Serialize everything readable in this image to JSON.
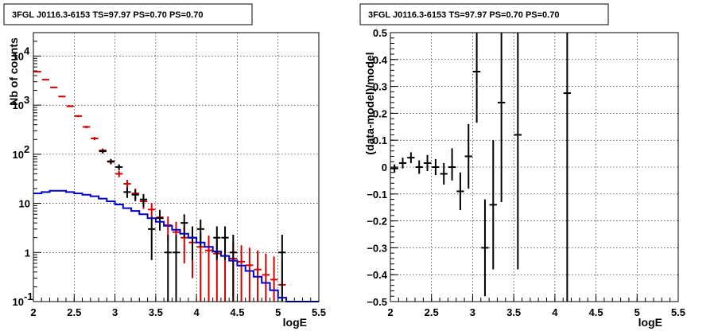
{
  "chart_data": [
    {
      "type": "histogram",
      "title": "3FGL J0116.3-6153 TS=97.97 PS=0.70 PS=0.70",
      "xlabel": "logE",
      "ylabel": "Nb of counts",
      "xlim": [
        2,
        5.5
      ],
      "ylim": [
        0.1,
        30000
      ],
      "yscale": "log",
      "grid": true,
      "x_ticks": [
        "2",
        "2.5",
        "3",
        "3.5",
        "4",
        "4.5",
        "5",
        "5.5"
      ],
      "y_ticks": [
        {
          "value": 0.1,
          "base": "10",
          "exp": "-1"
        },
        {
          "value": 1,
          "base": "1",
          "exp": ""
        },
        {
          "value": 10,
          "base": "10",
          "exp": ""
        },
        {
          "value": 100,
          "base": "10",
          "exp": "2"
        },
        {
          "value": 1000,
          "base": "10",
          "exp": "3"
        },
        {
          "value": 10000,
          "base": "10",
          "exp": "4"
        }
      ],
      "bin_width": 0.1,
      "series": [
        {
          "color": "#d40000",
          "style": "errorbars",
          "x": [
            2.05,
            2.15,
            2.25,
            2.35,
            2.45,
            2.55,
            2.65,
            2.75,
            2.85,
            2.95,
            3.05,
            3.15,
            3.25,
            3.35,
            3.45,
            3.55,
            3.65,
            3.75,
            3.85,
            3.95,
            4.05,
            4.15,
            4.25,
            4.35,
            4.45,
            4.55,
            4.65,
            4.75,
            4.85,
            4.95,
            5.05
          ],
          "y": [
            4800,
            3300,
            2300,
            1500,
            950,
            600,
            360,
            210,
            120,
            70,
            40,
            25,
            16,
            11,
            7.5,
            5.2,
            3.6,
            2.6,
            2.0,
            1.6,
            1.3,
            1.1,
            0.95,
            0.85,
            0.75,
            0.65,
            0.55,
            0.45,
            0.35,
            0.28,
            0.22
          ],
          "err_low": [
            120,
            90,
            70,
            50,
            40,
            30,
            22,
            16,
            11,
            8,
            6,
            5,
            4,
            3.3,
            2.7,
            2.2,
            1.8,
            1.6,
            1.4,
            1.3,
            1.2,
            1.09,
            0.94,
            0.84,
            0.74,
            0.64,
            0.54,
            0.44,
            0.34,
            0.27,
            0.21
          ],
          "err_high": [
            120,
            90,
            70,
            50,
            40,
            30,
            22,
            16,
            11,
            8,
            6,
            5,
            4,
            3.3,
            2.7,
            2.2,
            1.8,
            1.6,
            1.4,
            1.3,
            1.2,
            1.1,
            1.0,
            0.9,
            0.8,
            0.75,
            0.7,
            0.65,
            0.6,
            0.55,
            0.5
          ]
        },
        {
          "color": "#000000",
          "style": "errorbars",
          "x": [
            2.85,
            2.95,
            3.05,
            3.15,
            3.25,
            3.35,
            3.45,
            3.55,
            3.65,
            3.75,
            3.85,
            3.95,
            4.05,
            4.25,
            4.35,
            4.45,
            5.05
          ],
          "y": [
            115,
            72,
            55,
            17,
            15,
            12,
            3,
            5,
            1,
            1,
            4,
            2,
            3,
            2,
            2,
            1,
            1
          ],
          "err_low": [
            11,
            8.5,
            7.4,
            4.1,
            3.9,
            3.5,
            2.3,
            2.2,
            0.9,
            0.9,
            2,
            1.3,
            1.7,
            1.3,
            1.3,
            0.9,
            0.9
          ],
          "err_high": [
            11,
            8.5,
            7.4,
            4.1,
            3.9,
            3.5,
            2.3,
            2.2,
            1.3,
            1.3,
            2,
            1.4,
            1.7,
            1.4,
            1.4,
            1.3,
            1.3
          ]
        },
        {
          "color": "#0000cc",
          "style": "step",
          "edges": [
            2.0,
            2.1,
            2.2,
            2.3,
            2.4,
            2.5,
            2.6,
            2.7,
            2.8,
            2.9,
            3.0,
            3.1,
            3.2,
            3.3,
            3.4,
            3.5,
            3.6,
            3.7,
            3.8,
            3.9,
            4.0,
            4.1,
            4.2,
            4.3,
            4.4,
            4.5,
            4.6,
            4.7,
            4.8,
            4.9,
            5.0,
            5.1,
            5.5
          ],
          "values": [
            16,
            17,
            18,
            18,
            17,
            16,
            15,
            14,
            12.5,
            11,
            9.5,
            8,
            7,
            6,
            5,
            4.2,
            3.5,
            2.9,
            2.4,
            2.0,
            1.6,
            1.3,
            1.05,
            0.85,
            0.68,
            0.54,
            0.42,
            0.32,
            0.24,
            0.17,
            0.12,
            0.1
          ]
        }
      ]
    },
    {
      "type": "scatter",
      "title": "3FGL J0116.3-6153 TS=97.97 PS=0.70 PS=0.70",
      "xlabel": "logE",
      "ylabel": "(data-model)/model",
      "xlim": [
        2,
        5.5
      ],
      "ylim": [
        -0.5,
        0.5
      ],
      "grid": true,
      "x_ticks": [
        "2",
        "2.5",
        "3",
        "3.5",
        "4",
        "4.5",
        "5",
        "5.5"
      ],
      "y_ticks": [
        "−0.5",
        "−0.4",
        "−0.3",
        "−0.2",
        "−0.1",
        "0",
        "0.1",
        "0.2",
        "0.3",
        "0.4",
        "0.5"
      ],
      "bin_width": 0.1,
      "series": [
        {
          "color": "#000000",
          "style": "errorbars",
          "x": [
            2.05,
            2.15,
            2.25,
            2.35,
            2.45,
            2.55,
            2.65,
            2.75,
            2.85,
            2.95,
            3.05,
            3.15,
            3.25,
            3.35,
            3.55,
            4.15
          ],
          "y": [
            -0.005,
            0.015,
            0.035,
            0.0,
            0.015,
            0.0,
            -0.025,
            0.0,
            -0.09,
            0.04,
            0.355,
            -0.3,
            -0.14,
            0.24,
            0.12,
            0.275
          ],
          "err_low": [
            0.015,
            0.02,
            0.02,
            0.025,
            0.03,
            0.03,
            0.04,
            0.05,
            0.07,
            0.12,
            0.19,
            0.18,
            0.24,
            0.37,
            0.5,
            0.8
          ],
          "err_high": [
            0.015,
            0.02,
            0.02,
            0.025,
            0.03,
            0.03,
            0.04,
            0.07,
            0.07,
            0.12,
            0.5,
            0.18,
            0.24,
            0.5,
            0.5,
            0.5
          ]
        }
      ]
    }
  ]
}
